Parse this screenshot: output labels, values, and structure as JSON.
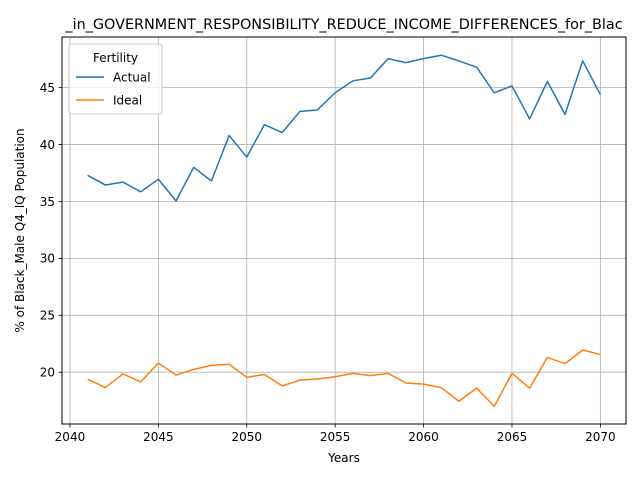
{
  "chart_data": {
    "type": "line",
    "title": "_in_GOVERNMENT_RESPONSIBILITY_REDUCE_INCOME_DIFFERENCES_for_Blac",
    "xlabel": "Years",
    "ylabel": "% of Black_Male Q4_IQ Population",
    "xlim": [
      2039.55,
      2071.45
    ],
    "ylim": [
      15.45,
      49.45
    ],
    "xticks": [
      2040,
      2045,
      2050,
      2055,
      2060,
      2065,
      2070
    ],
    "yticks": [
      20,
      25,
      30,
      35,
      40,
      45
    ],
    "grid": true,
    "legend": {
      "title": "Fertility",
      "placement": "upper-left"
    },
    "x": [
      2041,
      2042,
      2043,
      2044,
      2045,
      2046,
      2047,
      2048,
      2049,
      2050,
      2051,
      2052,
      2053,
      2054,
      2055,
      2056,
      2057,
      2058,
      2059,
      2060,
      2061,
      2062,
      2063,
      2064,
      2065,
      2066,
      2067,
      2068,
      2069,
      2070
    ],
    "series": [
      {
        "name": "Actual",
        "color": "#1f77b4",
        "values": [
          37.3,
          36.45,
          36.7,
          35.85,
          36.95,
          35.05,
          38.0,
          36.8,
          40.8,
          38.9,
          41.75,
          41.05,
          42.9,
          43.05,
          44.55,
          45.6,
          45.85,
          47.55,
          47.2,
          47.55,
          47.85,
          47.35,
          46.8,
          44.55,
          45.15,
          42.25,
          45.55,
          42.65,
          47.35,
          44.4
        ]
      },
      {
        "name": "Ideal",
        "color": "#ff7f0e",
        "values": [
          19.4,
          18.65,
          19.85,
          19.15,
          20.8,
          19.75,
          20.25,
          20.6,
          20.7,
          19.55,
          19.8,
          18.8,
          19.3,
          19.4,
          19.6,
          19.9,
          19.7,
          19.9,
          19.05,
          18.95,
          18.65,
          17.45,
          18.6,
          17.0,
          19.9,
          18.6,
          21.3,
          20.75,
          21.95,
          21.55
        ]
      }
    ]
  }
}
